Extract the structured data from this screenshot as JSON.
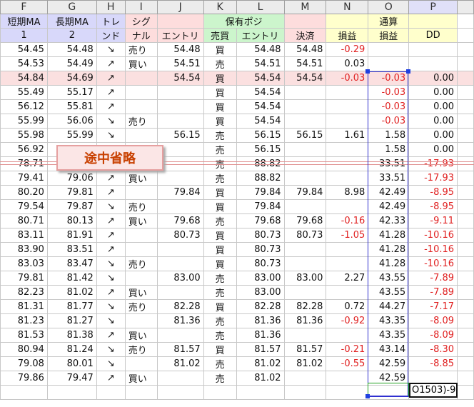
{
  "columns": [
    "F",
    "G",
    "H",
    "I",
    "J",
    "K",
    "L",
    "M",
    "N",
    "O",
    "P"
  ],
  "header_row1": {
    "F": "短期MA",
    "G": "長期MA",
    "H": "トレ",
    "I": "シグ",
    "K": "保有ポジ",
    "O": "通算"
  },
  "header_row2": {
    "F": "1",
    "G": "2",
    "H": "ンド",
    "I": "ナル",
    "J": "エントリ",
    "K": "売買",
    "L": "エントリ",
    "M": "決済",
    "N": "損益",
    "O": "損益",
    "P": "DD"
  },
  "rows": [
    [
      "54.45",
      "54.48",
      "↘",
      "売り",
      "54.48",
      "買",
      "54.48",
      "54.48",
      "-0.29",
      "",
      ""
    ],
    [
      "54.53",
      "54.49",
      "↗",
      "買い",
      "54.51",
      "売",
      "54.51",
      "54.51",
      "0.03",
      "",
      ""
    ],
    [
      "54.84",
      "54.69",
      "↗",
      "",
      "54.54",
      "買",
      "54.54",
      "54.54",
      "-0.03",
      "-0.03",
      "0.00"
    ],
    [
      "55.49",
      "55.17",
      "↗",
      "",
      "",
      "買",
      "54.54",
      "",
      "",
      "-0.03",
      "0.00"
    ],
    [
      "56.12",
      "55.81",
      "↗",
      "",
      "",
      "買",
      "54.54",
      "",
      "",
      "-0.03",
      "0.00"
    ],
    [
      "55.99",
      "56.06",
      "↘",
      "売り",
      "",
      "買",
      "54.54",
      "",
      "",
      "-0.03",
      "0.00"
    ],
    [
      "55.98",
      "55.99",
      "↘",
      "",
      "56.15",
      "売",
      "56.15",
      "56.15",
      "1.61",
      "1.58",
      "0.00"
    ],
    [
      "56.92",
      "",
      "",
      "",
      "",
      "売",
      "56.15",
      "",
      "",
      "1.58",
      "0.00"
    ],
    [
      "78.71",
      "",
      "",
      "",
      "",
      "売",
      "88.82",
      "",
      "",
      "33.51",
      "-17.93"
    ],
    [
      "79.41",
      "79.06",
      "↗",
      "買い",
      "",
      "売",
      "88.82",
      "",
      "",
      "33.51",
      "-17.93"
    ],
    [
      "80.20",
      "79.81",
      "↗",
      "",
      "79.84",
      "買",
      "79.84",
      "79.84",
      "8.98",
      "42.49",
      "-8.95"
    ],
    [
      "79.54",
      "79.87",
      "↘",
      "売り",
      "",
      "買",
      "79.84",
      "",
      "",
      "42.49",
      "-8.95"
    ],
    [
      "80.71",
      "80.13",
      "↗",
      "買い",
      "79.68",
      "売",
      "79.68",
      "79.68",
      "-0.16",
      "42.33",
      "-9.11"
    ],
    [
      "83.11",
      "81.91",
      "↗",
      "",
      "80.73",
      "買",
      "80.73",
      "80.73",
      "-1.05",
      "41.28",
      "-10.16"
    ],
    [
      "83.90",
      "83.51",
      "↗",
      "",
      "",
      "買",
      "80.73",
      "",
      "",
      "41.28",
      "-10.16"
    ],
    [
      "83.03",
      "83.47",
      "↘",
      "売り",
      "",
      "買",
      "80.73",
      "",
      "",
      "41.28",
      "-10.16"
    ],
    [
      "79.81",
      "81.42",
      "↘",
      "",
      "83.00",
      "売",
      "83.00",
      "83.00",
      "2.27",
      "43.55",
      "-7.89"
    ],
    [
      "82.23",
      "81.02",
      "↗",
      "買い",
      "",
      "売",
      "83.00",
      "",
      "",
      "43.55",
      "-7.89"
    ],
    [
      "81.31",
      "81.77",
      "↘",
      "売り",
      "82.28",
      "買",
      "82.28",
      "82.28",
      "0.72",
      "44.27",
      "-7.17"
    ],
    [
      "81.23",
      "81.27",
      "↘",
      "",
      "81.36",
      "売",
      "81.36",
      "81.36",
      "-0.92",
      "43.35",
      "-8.09"
    ],
    [
      "81.53",
      "81.38",
      "↗",
      "買い",
      "",
      "売",
      "81.36",
      "",
      "",
      "43.35",
      "-8.09"
    ],
    [
      "80.94",
      "81.24",
      "↘",
      "売り",
      "81.57",
      "買",
      "81.57",
      "81.57",
      "-0.21",
      "43.14",
      "-8.30"
    ],
    [
      "79.08",
      "80.01",
      "↘",
      "",
      "81.02",
      "売",
      "81.02",
      "81.02",
      "-0.55",
      "42.59",
      "-8.85"
    ],
    [
      "79.86",
      "79.47",
      "↗",
      "買い",
      "",
      "売",
      "81.02",
      "",
      "",
      "42.59",
      ""
    ]
  ],
  "highlight_row": 3,
  "callout": "途中省略",
  "active_cell_text": "O1503)-9",
  "colors": {
    "negative": "#e02020",
    "selection": "#3030d0",
    "callout_text": "#c84000"
  }
}
